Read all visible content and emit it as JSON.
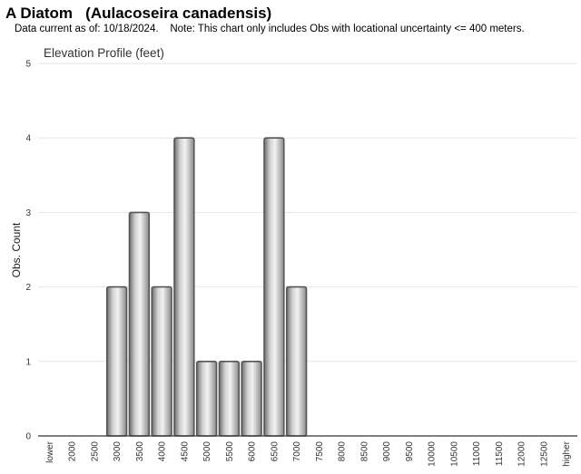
{
  "header": {
    "title": "A Diatom   (Aulacoseira canadensis)",
    "note": "Data current as of: 10/18/2024.    Note: This chart only includes Obs with locational uncertainty <= 400 meters."
  },
  "chart_data": {
    "type": "bar",
    "title": "Elevation Profile (feet)",
    "ylabel": "Obs. Count",
    "xlabel": "",
    "ylim": [
      0,
      5
    ],
    "yticks": [
      0,
      1,
      2,
      3,
      4,
      5
    ],
    "grid": true,
    "categories": [
      "lower",
      "2000",
      "2500",
      "3000",
      "3500",
      "4000",
      "4500",
      "5000",
      "5500",
      "6000",
      "6500",
      "7000",
      "7500",
      "8000",
      "8500",
      "9000",
      "9500",
      "10000",
      "10500",
      "11000",
      "11500",
      "12000",
      "12500",
      "higher"
    ],
    "values": [
      0,
      0,
      0,
      2,
      3,
      2,
      4,
      1,
      1,
      1,
      4,
      2,
      0,
      0,
      0,
      0,
      0,
      0,
      0,
      0,
      0,
      0,
      0,
      0
    ],
    "colors": {
      "bar_fill": "#b0b0b0",
      "bar_edge": "#555555",
      "grid": "#e6e6e6",
      "axis": "#333333"
    }
  }
}
